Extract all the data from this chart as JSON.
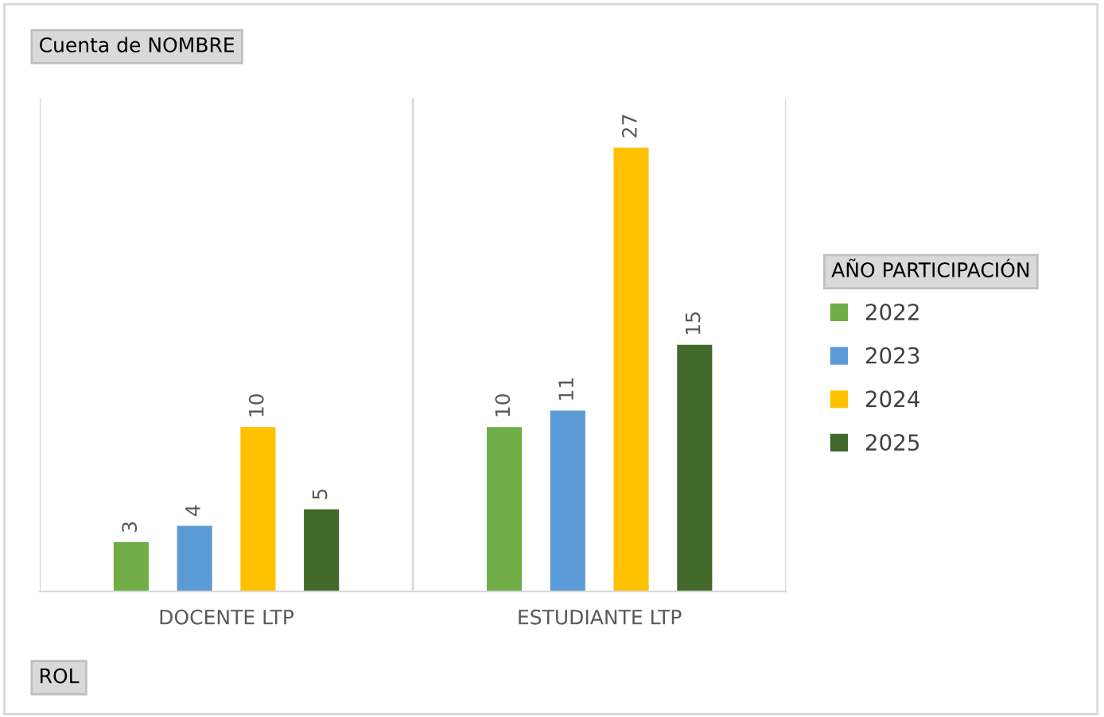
{
  "chart_data": {
    "type": "bar",
    "title": "Cuenta de NOMBRE",
    "xlabel": "ROL",
    "legend_title": "AÑO PARTICIPACIÓN",
    "categories": [
      "DOCENTE LTP",
      "ESTUDIANTE LTP"
    ],
    "series": [
      {
        "name": "2022",
        "color": "#70ad47",
        "values": [
          3,
          10
        ]
      },
      {
        "name": "2023",
        "color": "#5b9bd5",
        "values": [
          4,
          11
        ]
      },
      {
        "name": "2024",
        "color": "#ffc000",
        "values": [
          10,
          27
        ]
      },
      {
        "name": "2025",
        "color": "#43682b",
        "values": [
          5,
          15
        ]
      }
    ],
    "ylim": [
      0,
      30
    ],
    "data_labels": true,
    "grid": "x",
    "legend": "right"
  }
}
